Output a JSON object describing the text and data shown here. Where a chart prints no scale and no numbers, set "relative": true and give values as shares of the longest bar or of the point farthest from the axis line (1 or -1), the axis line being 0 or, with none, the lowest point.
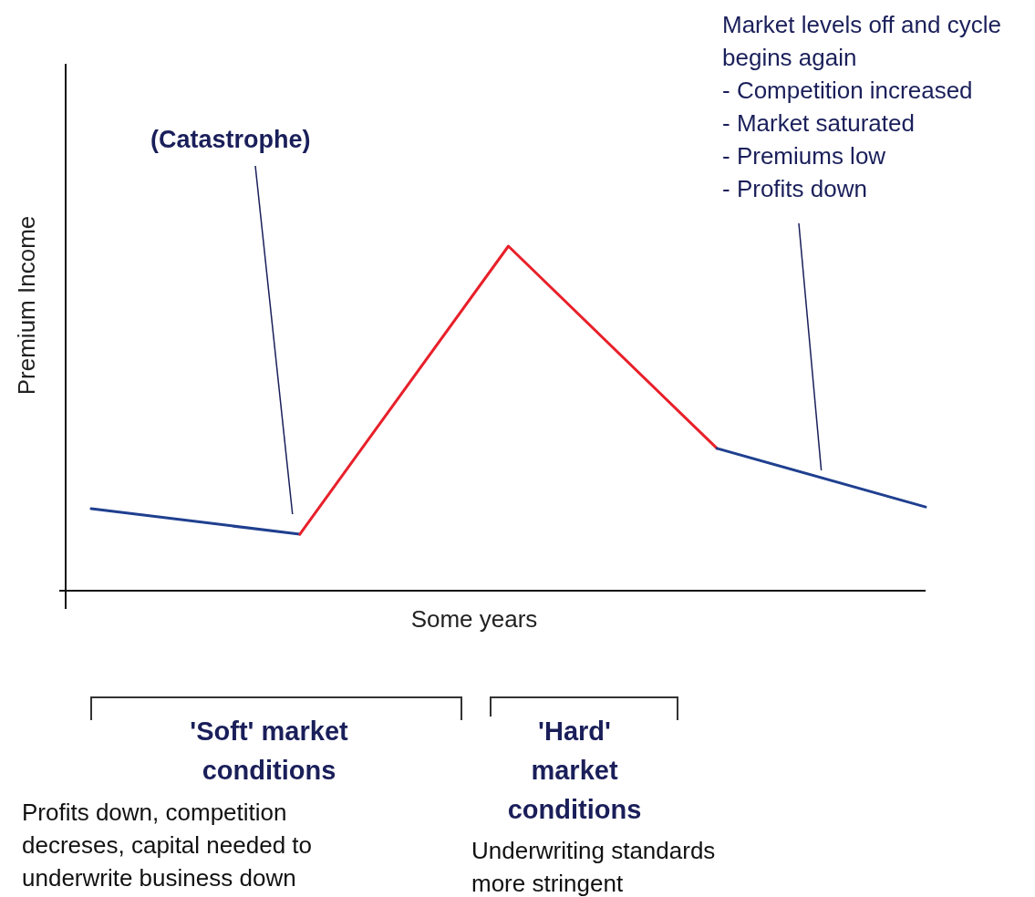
{
  "chart_data": {
    "type": "line",
    "relative": true,
    "xlabel": "Some years",
    "ylabel": "Premium Income",
    "categories": [
      null,
      null,
      null,
      null,
      null
    ],
    "series": [
      {
        "color": "#1f3f8f",
        "values": [
          0.238,
          0.164,
          null,
          null,
          null
        ]
      },
      {
        "color": "#e8202a",
        "values": [
          null,
          0.164,
          1,
          0.413,
          null
        ]
      },
      {
        "color": "#1f3f8f",
        "values": [
          null,
          null,
          null,
          0.413,
          0.243
        ]
      }
    ],
    "annotations": [
      "(Catastrophe)",
      "Market levels off and cycle\nbegins again\n- Competition increased\n- Market saturated\n- Premiums low\n- Profits down",
      "'Soft' market\nconditions",
      "Profits down, competition\ndecreses, capital needed to\nunderwrite business down",
      "'Hard'\nmarket\nconditions",
      "Underwriting standards\nmore stringent"
    ],
    "marker": "none",
    "line_style": "solid"
  }
}
